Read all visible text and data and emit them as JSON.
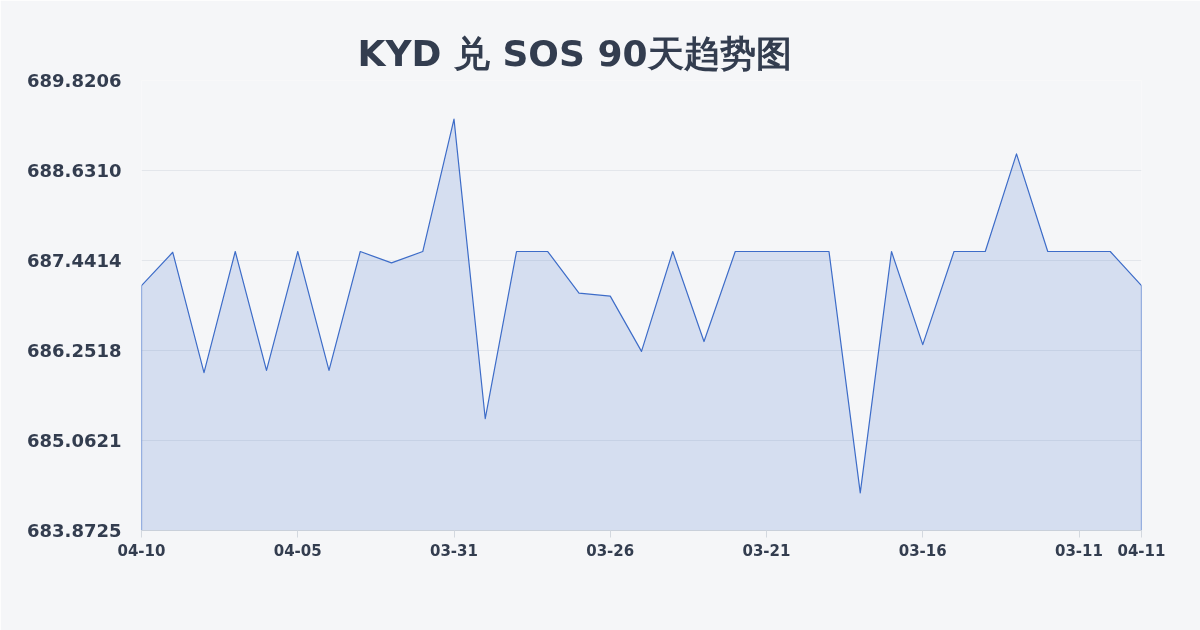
{
  "chart_data": {
    "type": "area",
    "title": "KYD 兑 SOS 90天趋势图",
    "categories": [
      "04-10",
      null,
      null,
      null,
      null,
      "04-05",
      null,
      null,
      null,
      null,
      "03-31",
      null,
      null,
      null,
      null,
      "03-26",
      null,
      null,
      null,
      null,
      "03-21",
      null,
      null,
      null,
      null,
      "03-16",
      null,
      null,
      null,
      null,
      "03-11",
      null,
      "04-11"
    ],
    "values": [
      687.11,
      687.55,
      685.96,
      687.56,
      685.99,
      687.56,
      685.99,
      687.56,
      687.41,
      687.56,
      689.31,
      685.35,
      687.56,
      687.56,
      687.01,
      686.97,
      686.24,
      687.56,
      686.37,
      687.56,
      687.56,
      687.56,
      687.56,
      684.37,
      687.56,
      686.33,
      687.56,
      687.56,
      688.85,
      687.56,
      687.56,
      687.56,
      687.11
    ],
    "color": "#3d6cc8",
    "ylim": [
      683.8725,
      689.8206
    ],
    "yticks": [
      683.8725,
      685.0621,
      686.2518,
      687.4414,
      {
        "value": 688.631,
        "label": "688.6310"
      },
      689.8206
    ],
    "grid": "y"
  }
}
